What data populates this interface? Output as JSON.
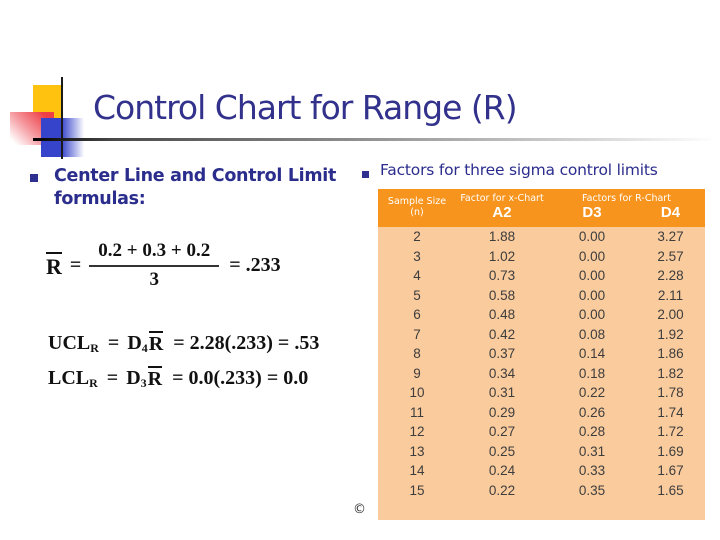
{
  "title": "Control Chart for Range (R)",
  "bullets": {
    "left": "Center Line and Control Limit formulas:",
    "right": "Factors for three sigma control limits"
  },
  "formulas": {
    "rbar": {
      "lhs": "R",
      "eq": "=",
      "numerator": "0.2 + 0.3 + 0.2",
      "denominator": "3",
      "result": "= .233"
    },
    "ucl": {
      "lhs": "UCL",
      "lhs_sub": "R",
      "eq": "=",
      "factor": "D",
      "factor_sub": "4",
      "rbar": "R",
      "rest": "= 2.28(.233) = .53"
    },
    "lcl": {
      "lhs": "LCL",
      "lhs_sub": "R",
      "eq": "=",
      "factor": "D",
      "factor_sub": "3",
      "rbar": "R",
      "rest": "= 0.0(.233) = 0.0"
    }
  },
  "table": {
    "col1_header": [
      "Sample Size",
      "(n)"
    ],
    "group_headers": {
      "x_chart": "Factor for x-Chart",
      "r_chart": "Factors for R-Chart"
    },
    "sub_headers": {
      "a2": "A2",
      "d3": "D3",
      "d4": "D4"
    },
    "rows": [
      [
        "2",
        "1.88",
        "0.00",
        "3.27"
      ],
      [
        "3",
        "1.02",
        "0.00",
        "2.57"
      ],
      [
        "4",
        "0.73",
        "0.00",
        "2.28"
      ],
      [
        "5",
        "0.58",
        "0.00",
        "2.11"
      ],
      [
        "6",
        "0.48",
        "0.00",
        "2.00"
      ],
      [
        "7",
        "0.42",
        "0.08",
        "1.92"
      ],
      [
        "8",
        "0.37",
        "0.14",
        "1.86"
      ],
      [
        "9",
        "0.34",
        "0.18",
        "1.82"
      ],
      [
        "10",
        "0.31",
        "0.22",
        "1.78"
      ],
      [
        "11",
        "0.29",
        "0.26",
        "1.74"
      ],
      [
        "12",
        "0.27",
        "0.28",
        "1.72"
      ],
      [
        "13",
        "0.25",
        "0.31",
        "1.69"
      ],
      [
        "14",
        "0.24",
        "0.33",
        "1.67"
      ],
      [
        "15",
        "0.22",
        "0.35",
        "1.65"
      ]
    ]
  },
  "footer": {
    "copyright": "©"
  },
  "colors": {
    "title_navy": "#32318c",
    "bullet_navy": "#2b2d8d",
    "header_orange": "#f7941d",
    "table_body_peach": "#facb9d",
    "decoration_yellow": "#ffc20e",
    "decoration_red": "#ee3e46",
    "decoration_blue": "#3644cb"
  }
}
